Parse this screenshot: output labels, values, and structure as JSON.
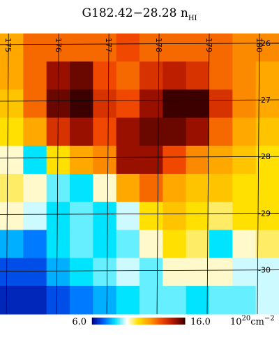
{
  "chart_data": {
    "type": "heatmap",
    "title": "G182.42−28.28 n",
    "title_subscript": "HI",
    "values": [
      [
        12,
        13,
        13,
        13,
        13,
        13.5,
        13,
        13,
        13,
        13,
        12.5,
        12.5
      ],
      [
        12,
        13,
        15,
        15.5,
        13.5,
        13,
        14,
        14.5,
        14,
        13,
        12.5,
        12
      ],
      [
        11.5,
        13,
        15.5,
        16,
        14,
        13.5,
        15,
        16,
        16,
        14,
        12.5,
        12
      ],
      [
        11,
        12,
        14,
        15,
        13.5,
        15,
        15.5,
        15.5,
        15,
        13,
        12,
        11.5
      ],
      [
        10,
        8.5,
        11,
        12,
        12.5,
        15,
        15,
        13.5,
        12.5,
        12,
        11.5,
        11
      ],
      [
        10.5,
        10,
        9,
        8.5,
        10,
        12,
        13,
        12,
        11.5,
        11.5,
        11,
        11
      ],
      [
        10,
        9.5,
        8.5,
        9,
        8.5,
        9.5,
        11,
        11.5,
        11,
        10.5,
        11,
        11
      ],
      [
        8,
        7.5,
        8.5,
        9,
        8.5,
        9,
        10,
        11,
        10.5,
        8.5,
        10,
        10.5
      ],
      [
        7,
        7,
        8,
        8.5,
        9,
        9.5,
        9,
        10,
        10,
        10,
        9.5,
        9.5
      ],
      [
        6.5,
        6.5,
        7,
        7.5,
        8,
        8.5,
        9,
        9,
        8.5,
        9,
        9,
        9.5
      ]
    ],
    "zlim": [
      6,
      16
    ],
    "colorbar_ticks": [
      {
        "value": 6,
        "label": "6.0"
      },
      {
        "value": 16,
        "label": "16.0"
      }
    ],
    "colorbar_label": {
      "base": "10",
      "exponent": "20",
      "unit": "cm",
      "unit_exponent": "−2"
    },
    "colormap": [
      "#00008c",
      "#0060ff",
      "#00e4ff",
      "#ffffff",
      "#ffe000",
      "#ff9a00",
      "#f04800",
      "#b01400",
      "#3c0000"
    ],
    "xlim": [
      174.83,
      180.39
    ],
    "xticks": [
      175,
      176,
      177,
      178,
      179,
      180
    ],
    "ylim": [
      -30.78,
      -25.83
    ],
    "yticks": [
      -26,
      -27,
      -28,
      -29,
      -30
    ],
    "grid": true,
    "grid_color": "#000000"
  }
}
